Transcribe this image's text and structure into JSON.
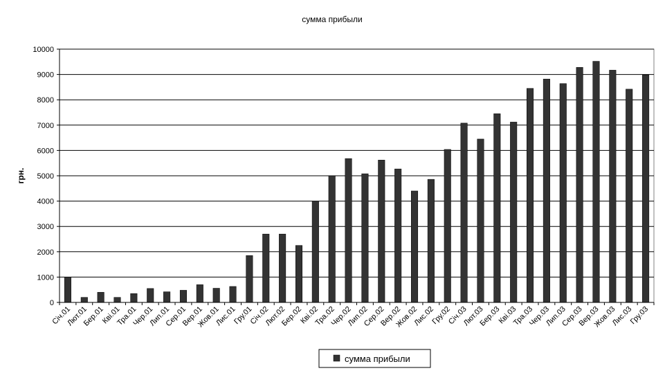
{
  "chart_data": {
    "type": "bar",
    "title": "сумма прибыли",
    "xlabel": "",
    "ylabel": "грн.",
    "ylim": [
      0,
      10000
    ],
    "yticks": [
      0,
      1000,
      2000,
      3000,
      4000,
      5000,
      6000,
      7000,
      8000,
      9000,
      10000
    ],
    "grid": true,
    "legend_position": "bottom",
    "categories": [
      "Січ.01",
      "Лют.01",
      "Бер.01",
      "Кві.01",
      "Тра.01",
      "Чер.01",
      "Лип.01",
      "Сер.01",
      "Вер.01",
      "Жов.01",
      "Лис.01",
      "Гру.01",
      "Січ.02",
      "Лют.02",
      "Бер.02",
      "Кві.02",
      "Тра.02",
      "Чер.02",
      "Лип.02",
      "Сер.02",
      "Вер.02",
      "Жов.02",
      "Лис.02",
      "Гру.02",
      "Січ.03",
      "Лют.03",
      "Бер.03",
      "Кві.03",
      "Тра.03",
      "Чер.03",
      "Лип.03",
      "Сер.03",
      "Вер.03",
      "Жов.03",
      "Лис.03",
      "Гру.03"
    ],
    "series": [
      {
        "name": "сумма прибыли",
        "color": "#333333",
        "values": [
          1000,
          200,
          400,
          200,
          350,
          550,
          420,
          480,
          700,
          560,
          630,
          1850,
          2700,
          2700,
          2250,
          4000,
          5000,
          5680,
          5080,
          5620,
          5270,
          4400,
          4860,
          6040,
          7080,
          6450,
          7450,
          7120,
          8450,
          8820,
          8640,
          9280,
          9520,
          9170,
          8420,
          8980
        ]
      }
    ]
  }
}
